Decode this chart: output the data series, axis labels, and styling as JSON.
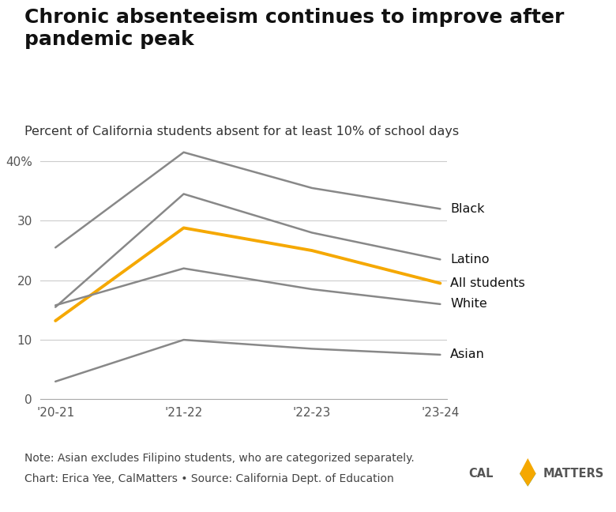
{
  "title": "Chronic absenteeism continues to improve after\npandemic peak",
  "subtitle": "Percent of California students absent for at least 10% of school days",
  "note": "Note: Asian excludes Filipino students, who are categorized separately.",
  "credit": "Chart: Erica Yee, CalMatters • Source: California Dept. of Education",
  "x_labels": [
    "'20-21",
    "'21-22",
    "'22-23",
    "'23-24"
  ],
  "series": [
    {
      "label": "Black",
      "color": "#888888",
      "values": [
        25.5,
        41.5,
        35.5,
        32.0
      ],
      "lw": 1.8
    },
    {
      "label": "Latino",
      "color": "#888888",
      "values": [
        15.5,
        34.5,
        28.0,
        23.5
      ],
      "lw": 1.8
    },
    {
      "label": "All students",
      "color": "#F5A800",
      "values": [
        13.2,
        28.8,
        25.0,
        19.5
      ],
      "lw": 2.8
    },
    {
      "label": "White",
      "color": "#888888",
      "values": [
        15.8,
        22.0,
        18.5,
        16.0
      ],
      "lw": 1.8
    },
    {
      "label": "Asian",
      "color": "#888888",
      "values": [
        3.0,
        10.0,
        8.5,
        7.5
      ],
      "lw": 1.8
    }
  ],
  "ylim": [
    0,
    43
  ],
  "yticks": [
    0,
    10,
    20,
    30,
    40
  ],
  "ytick_labels": [
    "0",
    "10",
    "20",
    "30",
    "40%"
  ],
  "background_color": "#ffffff",
  "title_fontsize": 18,
  "subtitle_fontsize": 11.5,
  "label_fontsize": 11.5,
  "note_fontsize": 10,
  "tick_fontsize": 11
}
